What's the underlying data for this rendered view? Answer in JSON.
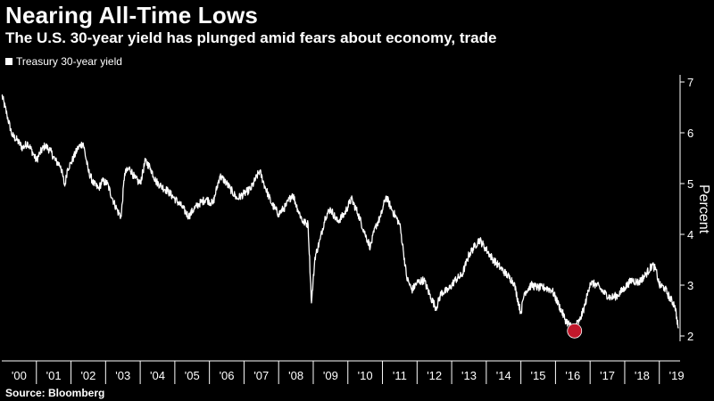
{
  "title": "Nearing All-Time Lows",
  "subtitle": "The U.S. 30-year yield has plunged amid fears about economy, trade",
  "source": "Source: Bloomberg",
  "colors": {
    "background": "#000000",
    "line": "#ffffff",
    "marker": "#c0182b"
  },
  "chart_data": {
    "type": "line",
    "ylabel": "Percent",
    "ylim": [
      2,
      7
    ],
    "yticks": [
      2,
      3,
      4,
      5,
      6,
      7
    ],
    "xlim": [
      2000.0,
      2019.6
    ],
    "xtick_labels": [
      "'00",
      "'01",
      "'02",
      "'03",
      "'04",
      "'05",
      "'06",
      "'07",
      "'08",
      "'09",
      "'10",
      "'11",
      "'12",
      "'13",
      "'14",
      "'15",
      "'16",
      "'17",
      "'18",
      "'19"
    ],
    "legend": "top-left",
    "grid": false,
    "series": [
      {
        "name": "Treasury 30-year yield",
        "x": [
          2000.0,
          2000.15,
          2000.3,
          2000.45,
          2000.6,
          2000.75,
          2000.9,
          2001.0,
          2001.1,
          2001.25,
          2001.4,
          2001.55,
          2001.7,
          2001.82,
          2001.9,
          2002.0,
          2002.2,
          2002.35,
          2002.5,
          2002.65,
          2002.8,
          2002.9,
          2003.05,
          2003.2,
          2003.35,
          2003.45,
          2003.55,
          2003.7,
          2003.85,
          2004.0,
          2004.15,
          2004.3,
          2004.45,
          2004.6,
          2004.8,
          2005.0,
          2005.2,
          2005.4,
          2005.55,
          2005.7,
          2005.9,
          2006.1,
          2006.3,
          2006.45,
          2006.6,
          2006.8,
          2007.0,
          2007.2,
          2007.45,
          2007.6,
          2007.8,
          2008.0,
          2008.2,
          2008.4,
          2008.55,
          2008.7,
          2008.85,
          2008.95,
          2009.05,
          2009.2,
          2009.35,
          2009.5,
          2009.7,
          2009.9,
          2010.1,
          2010.3,
          2010.5,
          2010.65,
          2010.8,
          2010.95,
          2011.1,
          2011.3,
          2011.5,
          2011.6,
          2011.7,
          2011.85,
          2012.0,
          2012.2,
          2012.4,
          2012.55,
          2012.7,
          2012.9,
          2013.1,
          2013.3,
          2013.5,
          2013.65,
          2013.8,
          2014.0,
          2014.2,
          2014.4,
          2014.6,
          2014.8,
          2015.0,
          2015.1,
          2015.3,
          2015.5,
          2015.7,
          2015.9,
          2016.1,
          2016.3,
          2016.5,
          2016.7,
          2016.85,
          2017.0,
          2017.2,
          2017.4,
          2017.6,
          2017.8,
          2018.0,
          2018.2,
          2018.4,
          2018.6,
          2018.8,
          2018.9,
          2019.0,
          2019.15,
          2019.3,
          2019.45,
          2019.55
        ],
        "values": [
          6.75,
          6.35,
          5.95,
          5.85,
          5.7,
          5.8,
          5.6,
          5.45,
          5.6,
          5.75,
          5.65,
          5.45,
          5.35,
          4.95,
          5.3,
          5.4,
          5.7,
          5.8,
          5.25,
          5.0,
          4.9,
          5.05,
          5.0,
          4.7,
          4.45,
          4.35,
          5.2,
          5.3,
          5.1,
          5.0,
          5.45,
          5.3,
          5.05,
          4.95,
          4.85,
          4.7,
          4.55,
          4.35,
          4.5,
          4.6,
          4.7,
          4.6,
          5.15,
          5.05,
          4.9,
          4.7,
          4.8,
          4.9,
          5.25,
          4.95,
          4.6,
          4.4,
          4.55,
          4.8,
          4.5,
          4.25,
          4.2,
          2.65,
          3.55,
          3.9,
          4.35,
          4.5,
          4.25,
          4.4,
          4.7,
          4.4,
          4.0,
          3.75,
          4.15,
          4.35,
          4.75,
          4.45,
          4.2,
          3.7,
          3.15,
          2.9,
          3.05,
          3.1,
          2.75,
          2.55,
          2.85,
          2.9,
          3.1,
          3.2,
          3.6,
          3.75,
          3.9,
          3.7,
          3.5,
          3.35,
          3.2,
          3.05,
          2.45,
          2.85,
          3.0,
          2.95,
          2.95,
          2.9,
          2.6,
          2.3,
          2.15,
          2.3,
          2.6,
          3.05,
          3.0,
          2.85,
          2.75,
          2.8,
          2.95,
          3.1,
          3.05,
          3.2,
          3.4,
          3.3,
          3.0,
          2.95,
          2.75,
          2.6,
          2.15
        ]
      }
    ],
    "annotations": [
      {
        "type": "marker",
        "x": 2016.55,
        "y": 2.1
      }
    ]
  }
}
